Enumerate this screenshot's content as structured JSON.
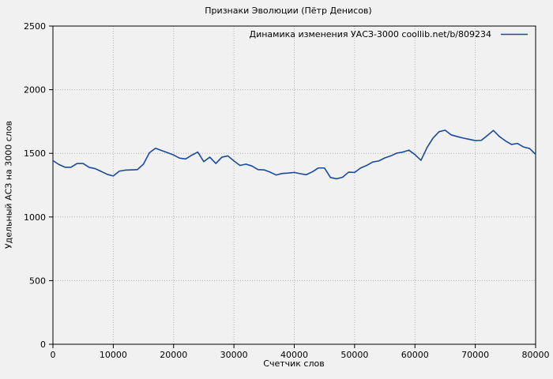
{
  "chart_data": {
    "type": "line",
    "title": "Признаки Эволюции (Пётр Денисов)",
    "xlabel": "Счетчик слов",
    "ylabel": "Удельный АСЗ на 3000 слов",
    "legend": "Динамика изменения УАСЗ-3000 coollib.net/b/809234",
    "legend_position": "top-right-inside",
    "grid": true,
    "xlim": [
      0,
      80000
    ],
    "ylim": [
      0,
      2500
    ],
    "xticks": [
      0,
      10000,
      20000,
      30000,
      40000,
      50000,
      60000,
      70000,
      80000
    ],
    "yticks": [
      0,
      500,
      1000,
      1500,
      2000,
      2500
    ],
    "line_color": "#1a4a9c",
    "grid_color": "#b3b3b3",
    "background_color": "#f1f1f1",
    "series": [
      {
        "name": "Динамика изменения УАСЗ-3000 coollib.net/b/809234",
        "x": [
          0,
          1000,
          2000,
          3000,
          4000,
          5000,
          6000,
          7000,
          8000,
          9000,
          10000,
          11000,
          12000,
          13000,
          14000,
          15000,
          16000,
          17000,
          18000,
          19000,
          20000,
          21000,
          22000,
          23000,
          24000,
          25000,
          26000,
          27000,
          28000,
          29000,
          30000,
          31000,
          32000,
          33000,
          34000,
          35000,
          36000,
          37000,
          38000,
          39000,
          40000,
          41000,
          42000,
          43000,
          44000,
          45000,
          46000,
          47000,
          48000,
          49000,
          50000,
          51000,
          52000,
          53000,
          54000,
          55000,
          56000,
          57000,
          58000,
          59000,
          60000,
          61000,
          62000,
          63000,
          64000,
          65000,
          66000,
          67000,
          68000,
          69000,
          70000,
          71000,
          72000,
          73000,
          74000,
          75000,
          76000,
          77000,
          78000,
          79000,
          80000
        ],
        "values": [
          1443,
          1412,
          1391,
          1391,
          1420,
          1420,
          1390,
          1380,
          1358,
          1335,
          1322,
          1360,
          1368,
          1370,
          1372,
          1415,
          1505,
          1540,
          1522,
          1505,
          1487,
          1462,
          1456,
          1485,
          1510,
          1435,
          1470,
          1420,
          1470,
          1480,
          1440,
          1405,
          1415,
          1400,
          1372,
          1370,
          1352,
          1330,
          1342,
          1345,
          1350,
          1340,
          1332,
          1355,
          1385,
          1385,
          1310,
          1300,
          1312,
          1352,
          1350,
          1385,
          1405,
          1432,
          1440,
          1464,
          1480,
          1502,
          1510,
          1525,
          1490,
          1445,
          1545,
          1620,
          1670,
          1682,
          1645,
          1632,
          1620,
          1610,
          1600,
          1602,
          1640,
          1680,
          1632,
          1598,
          1570,
          1578,
          1550,
          1538,
          1492
        ]
      }
    ]
  }
}
